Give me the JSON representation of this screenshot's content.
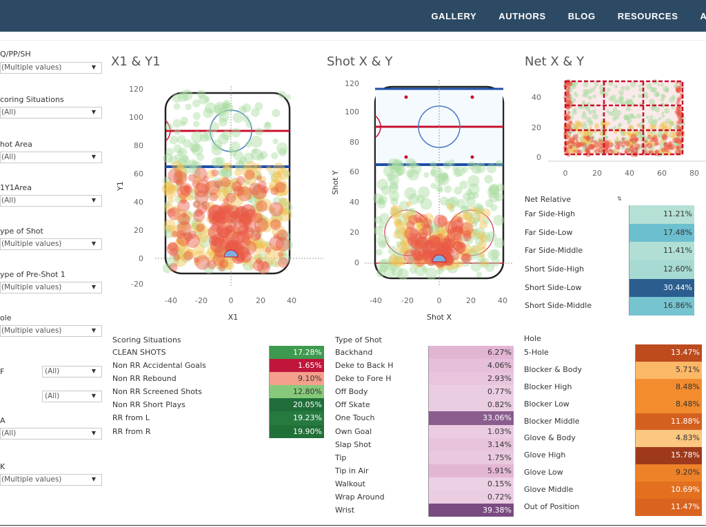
{
  "nav": {
    "items": [
      "GALLERY",
      "AUTHORS",
      "BLOG",
      "RESOURCES",
      "ACT"
    ]
  },
  "filters": [
    {
      "label": "Q/PP/SH",
      "value": "(Multiple values)"
    },
    {
      "label": "coring Situations",
      "value": "(All)"
    },
    {
      "label": "hot Area",
      "value": "(All)"
    },
    {
      "label": "1Y1Area",
      "value": "(All)"
    },
    {
      "label": "ype of Shot",
      "value": "(Multiple values)"
    },
    {
      "label": "ype of Pre-Shot 1",
      "value": "(Multiple values)"
    },
    {
      "label": "ole",
      "value": "(Multiple values)"
    },
    {
      "label": "F",
      "value": "(All)",
      "value2": "(All)"
    },
    {
      "label": "A",
      "value": "(All)"
    },
    {
      "label": "K",
      "value": "(Multiple values)"
    }
  ],
  "charts": {
    "x1y1": {
      "title": "X1 & Y1",
      "xlabel": "X1",
      "ylabel": "Y1",
      "xticks": [
        "-40",
        "-20",
        "0",
        "20",
        "40"
      ],
      "yticks": [
        "120",
        "100",
        "80",
        "60",
        "40",
        "20",
        "0",
        "-20"
      ]
    },
    "shot": {
      "title": "Shot X & Y",
      "xlabel": "Shot X",
      "ylabel": "Shot Y",
      "xticks": [
        "-40",
        "-20",
        "0",
        "20",
        "40"
      ],
      "yticks": [
        "120",
        "100",
        "80",
        "60",
        "40",
        "20",
        "0"
      ]
    },
    "net": {
      "title": "Net X & Y",
      "xticks": [
        "0",
        "20",
        "40",
        "60",
        "80"
      ],
      "yticks": [
        "40",
        "20",
        "0"
      ]
    }
  },
  "colors": {
    "nav_bg": "#2c4a63",
    "rink_red": "#c8102e",
    "rink_blue": "#1f4fa8",
    "heat_low": "#a8dca0",
    "heat_mid": "#f2c14e",
    "heat_high": "#ea5a45"
  },
  "net_relative": {
    "header": "Net Relative",
    "rows": [
      {
        "label": "Far Side-High",
        "value": "11.21%",
        "color": "#b5e0d6",
        "text": "#333"
      },
      {
        "label": "Far Side-Low",
        "value": "17.48%",
        "color": "#6cbfcf",
        "text": "#333"
      },
      {
        "label": "Far Side-Middle",
        "value": "11.41%",
        "color": "#b1dfd5",
        "text": "#333"
      },
      {
        "label": "Short Side-High",
        "value": "12.60%",
        "color": "#a6dad2",
        "text": "#333"
      },
      {
        "label": "Short Side-Low",
        "value": "30.44%",
        "color": "#2b5d8f",
        "text": "#ffffff"
      },
      {
        "label": "Short Side-Middle",
        "value": "16.86%",
        "color": "#76c4d0",
        "text": "#333"
      }
    ]
  },
  "scoring_situations": {
    "header": "Scoring Situations",
    "rows": [
      {
        "label": "CLEAN SHOTS",
        "value": "17.28%",
        "color": "#3d9a4f",
        "text": "#ffffff"
      },
      {
        "label": "Non RR Accidental Goals",
        "value": "1.65%",
        "color": "#c0163c",
        "text": "#ffffff"
      },
      {
        "label": "Non RR Rebound",
        "value": "9.10%",
        "color": "#f4a08c",
        "text": "#333"
      },
      {
        "label": "Non RR Screened Shots",
        "value": "12.80%",
        "color": "#86c97a",
        "text": "#333"
      },
      {
        "label": "Non RR Short Plays",
        "value": "20.05%",
        "color": "#1f6e3a",
        "text": "#ffffff"
      },
      {
        "label": "RR from L",
        "value": "19.23%",
        "color": "#267a40",
        "text": "#ffffff"
      },
      {
        "label": "RR from R",
        "value": "19.90%",
        "color": "#217038",
        "text": "#ffffff"
      }
    ]
  },
  "type_of_shot": {
    "header": "Type of Shot",
    "rows": [
      {
        "label": "Backhand",
        "value": "6.27%",
        "color": "#e2b5d3",
        "text": "#333"
      },
      {
        "label": "Deke to Back H",
        "value": "4.06%",
        "color": "#e6bfda",
        "text": "#333"
      },
      {
        "label": "Deke to Fore H",
        "value": "2.93%",
        "color": "#e8c5dd",
        "text": "#333"
      },
      {
        "label": "Off Body",
        "value": "0.77%",
        "color": "#ebcde2",
        "text": "#333"
      },
      {
        "label": "Off Skate",
        "value": "0.82%",
        "color": "#ebcde2",
        "text": "#333"
      },
      {
        "label": "One Touch",
        "value": "33.06%",
        "color": "#8a5d8e",
        "text": "#ffffff"
      },
      {
        "label": "Own Goal",
        "value": "1.03%",
        "color": "#eacbe1",
        "text": "#333"
      },
      {
        "label": "Slap Shot",
        "value": "3.14%",
        "color": "#e8c4dc",
        "text": "#333"
      },
      {
        "label": "Tip",
        "value": "1.75%",
        "color": "#eac9df",
        "text": "#333"
      },
      {
        "label": "Tip in Air",
        "value": "5.91%",
        "color": "#e3b7d4",
        "text": "#333"
      },
      {
        "label": "Walkout",
        "value": "0.15%",
        "color": "#ecd0e4",
        "text": "#333"
      },
      {
        "label": "Wrap Around",
        "value": "0.72%",
        "color": "#ebcde2",
        "text": "#333"
      },
      {
        "label": "Wrist",
        "value": "39.38%",
        "color": "#7a4b80",
        "text": "#ffffff"
      }
    ]
  },
  "hole": {
    "header": "Hole",
    "rows": [
      {
        "label": "5-Hole",
        "value": "13.47%",
        "color": "#bc4b1e",
        "text": "#ffffff"
      },
      {
        "label": "Blocker & Body",
        "value": "5.71%",
        "color": "#fbb867",
        "text": "#333"
      },
      {
        "label": "Blocker High",
        "value": "8.48%",
        "color": "#f28c2e",
        "text": "#333"
      },
      {
        "label": "Blocker Low",
        "value": "8.48%",
        "color": "#f28c2e",
        "text": "#333"
      },
      {
        "label": "Blocker Middle",
        "value": "11.88%",
        "color": "#d4601f",
        "text": "#ffffff"
      },
      {
        "label": "Glove & Body",
        "value": "4.83%",
        "color": "#fcc780",
        "text": "#333"
      },
      {
        "label": "Glove High",
        "value": "15.78%",
        "color": "#9e3a1b",
        "text": "#ffffff"
      },
      {
        "label": "Glove Low",
        "value": "9.20%",
        "color": "#ee8228",
        "text": "#333"
      },
      {
        "label": "Glove Middle",
        "value": "10.69%",
        "color": "#e2701f",
        "text": "#ffffff"
      },
      {
        "label": "Out of Position",
        "value": "11.47%",
        "color": "#d86420",
        "text": "#ffffff"
      }
    ]
  }
}
